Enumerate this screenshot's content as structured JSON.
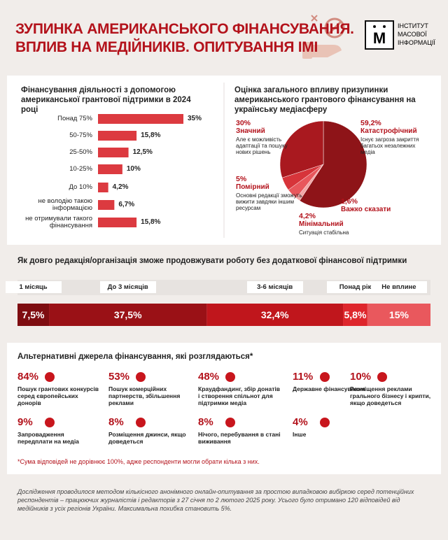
{
  "header": {
    "title_lines": [
      "ЗУПИНКА АМЕРИКАНСЬКОГО ФІНАНСУВАННЯ.",
      "ВПЛИВ НА МЕДІЙНИКІВ. ОПИТУВАННЯ ІМІ"
    ],
    "logo": {
      "mark": "М",
      "lines": [
        "ІНСТИТУТ",
        "МАСОВОЇ",
        "ІНФОРМАЦІЇ"
      ]
    }
  },
  "chart_data": [
    {
      "type": "bar",
      "orientation": "horizontal",
      "title": "Фінансування діяльності з допомогою американської грантової підтримки в 2024 році",
      "categories": [
        "Понад 75%",
        "50-75%",
        "25-50%",
        "10-25%",
        "До 10%",
        "не володію такою інформацією",
        "не отримували такого фінансування"
      ],
      "values": [
        35,
        15.8,
        12.5,
        10,
        4.2,
        6.7,
        15.8
      ],
      "value_labels": [
        "35%",
        "15,8%",
        "12,5%",
        "10%",
        "4,2%",
        "6,7%",
        "15,8%"
      ],
      "color": "#dc3a40"
    },
    {
      "type": "pie",
      "title": "Оцінка загального впливу призупинки американського грантового фінансування на українську медіасферу",
      "categories": [
        "Катастрофічний",
        "Важко сказати",
        "Мінімальний",
        "Помірний",
        "Значний"
      ],
      "values": [
        59.2,
        1.6,
        4.2,
        5,
        30
      ],
      "value_labels": [
        "59,2%",
        "1,6%",
        "4,2%",
        "5%",
        "30%"
      ],
      "descriptions": [
        "Існує загроза закриття багатьох незалежних медіа",
        null,
        "Ситуація стабільна",
        "Основні редакції зможуть вижити завдяки іншим ресурсам",
        "Але є можливість адаптації та пошуку нових рішень"
      ],
      "colors": [
        "#8e1418",
        "#f2a6a6",
        "#e8575c",
        "#d7343a",
        "#a9191f"
      ]
    },
    {
      "type": "stacked_bar",
      "title": "Як довго редакція/організація зможе продовжувати роботу без додаткової фінансової підтримки",
      "categories": [
        "1 місяць",
        "До 3 місяців",
        "3-6 місяців",
        "Понад рік",
        "Не вплине"
      ],
      "values": [
        7.5,
        37.5,
        32.4,
        5.8,
        15
      ],
      "value_labels": [
        "7,5%",
        "37,5%",
        "32,4%",
        "5,8%",
        "15%"
      ],
      "colors": [
        "#7e0d11",
        "#9a1116",
        "#c0161c",
        "#de262c",
        "#e9585d"
      ]
    }
  ],
  "alternatives": {
    "title": "Альтернативні джерела фінансування, які розглядаються*",
    "items": [
      {
        "value": "84%",
        "text": "Пошук грантових конкурсів серед європейських донорів"
      },
      {
        "value": "53%",
        "text": "Пошук комерційних партнерств, збільшення реклами"
      },
      {
        "value": "48%",
        "text": "Краудфандинг, збір донатів і створення спільнот для підтримки медіа"
      },
      {
        "value": "11%",
        "text": "Державне фінансування"
      },
      {
        "value": "10%",
        "text": "Розміщення реклами грального бізнесу і крипти, якщо доведеться"
      },
      {
        "value": "9%",
        "text": "Запровадження передплати на медіа"
      },
      {
        "value": "8%",
        "text": "Розміщення джинси, якщо доведеться"
      },
      {
        "value": "8%",
        "text": "Нічого, перебування в стані виживання"
      },
      {
        "value": "4%",
        "text": "Інше"
      }
    ]
  },
  "footnote": "*Сума відповідей не дорівнює 100%, адже респонденти могли обрати кілька з них.",
  "methodology": "Дослідження проводилося методом кількісного анонімного онлайн-опитування за простою випадковою вибіркою серед потенційних респондентів – працюючих журналістів і редакторів з 27 січня по 2 лютого 2025 року. Усього було отримано 120 відповідей від медійників з усіх регіонів України. Максимальна похибка становить 5%."
}
